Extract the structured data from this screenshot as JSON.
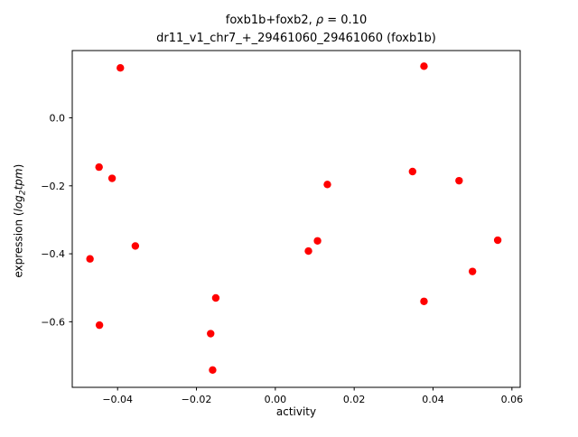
{
  "header": {
    "line1_pre": "foxb1b+foxb2, ",
    "rho": "ρ",
    "line1_post": " = 0.10",
    "line2": "dr11_v1_chr7_+_29461060_29461060 (foxb1b)"
  },
  "ylabel_parts": {
    "pre": "expression (",
    "log": "log",
    "sub": "2",
    "var": "tpm",
    "post": ")"
  },
  "chart_data": {
    "type": "scatter",
    "title": "foxb1b+foxb2, ρ = 0.10",
    "subtitle": "dr11_v1_chr7_+_29461060_29461060 (foxb1b)",
    "xlabel": "activity",
    "ylabel": "expression (log2 tpm)",
    "legend": "none",
    "grid": false,
    "marker_color": "#ff0000",
    "axis_color": "#000000",
    "xlim": [
      -0.0515,
      0.0621
    ],
    "ylim": [
      -0.793,
      0.198
    ],
    "xticks": {
      "values": [
        -0.04,
        -0.02,
        0.0,
        0.02,
        0.04,
        0.06
      ],
      "labels": [
        "−0.04",
        "−0.02",
        "0.00",
        "0.02",
        "0.04",
        "0.06"
      ]
    },
    "yticks": {
      "values": [
        0.0,
        -0.2,
        -0.4,
        -0.6
      ],
      "labels": [
        "0.0",
        "−0.2",
        "−0.4",
        "−0.6"
      ]
    },
    "points": [
      {
        "x": -0.0393,
        "y": 0.147
      },
      {
        "x": 0.0377,
        "y": 0.152
      },
      {
        "x": -0.0447,
        "y": -0.145
      },
      {
        "x": -0.0414,
        "y": -0.178
      },
      {
        "x": 0.0348,
        "y": -0.158
      },
      {
        "x": 0.0466,
        "y": -0.185
      },
      {
        "x": 0.0132,
        "y": -0.196
      },
      {
        "x": 0.0107,
        "y": -0.362
      },
      {
        "x": 0.0084,
        "y": -0.392
      },
      {
        "x": 0.0564,
        "y": -0.36
      },
      {
        "x": -0.0355,
        "y": -0.377
      },
      {
        "x": -0.047,
        "y": -0.415
      },
      {
        "x": 0.05,
        "y": -0.452
      },
      {
        "x": -0.0151,
        "y": -0.53
      },
      {
        "x": 0.0377,
        "y": -0.54
      },
      {
        "x": -0.0446,
        "y": -0.61
      },
      {
        "x": -0.0164,
        "y": -0.635
      },
      {
        "x": -0.0159,
        "y": -0.742
      }
    ]
  }
}
